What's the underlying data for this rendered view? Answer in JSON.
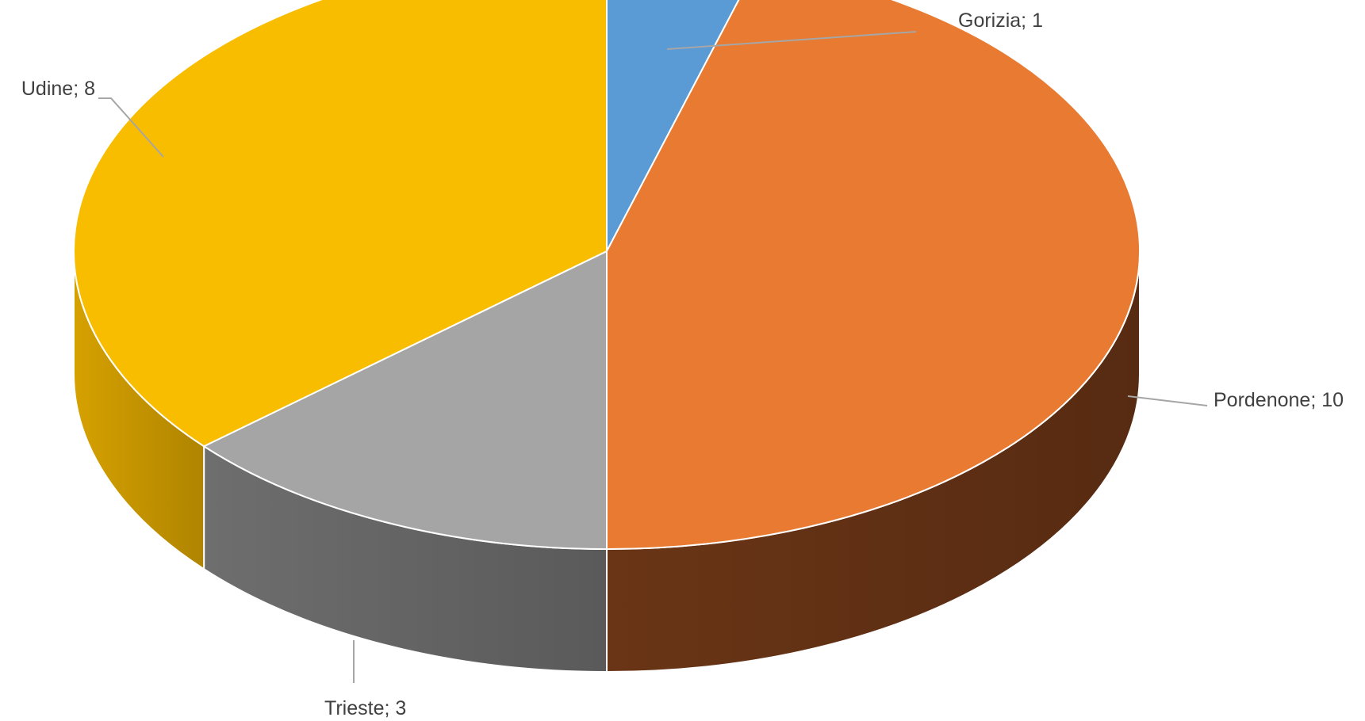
{
  "chart_data": {
    "type": "pie",
    "style": "3d",
    "title": "",
    "legend": "none",
    "label_format": "category; value",
    "slices": [
      {
        "name": "Gorizia",
        "value": 1,
        "color": "#5b9bd5",
        "side_color": "#3f75a8",
        "label": "Gorizia; 1"
      },
      {
        "name": "Pordenone",
        "value": 10,
        "color": "#e87a31",
        "side_color": "#6a3516",
        "label": "Pordenone; 10"
      },
      {
        "name": "Trieste",
        "value": 3,
        "color": "#a5a5a5",
        "side_color": "#6e6e6e",
        "label": "Trieste; 3"
      },
      {
        "name": "Udine",
        "value": 8,
        "color": "#f9bd00",
        "side_color": "#d6a100",
        "label": "Udine; 8"
      }
    ]
  }
}
